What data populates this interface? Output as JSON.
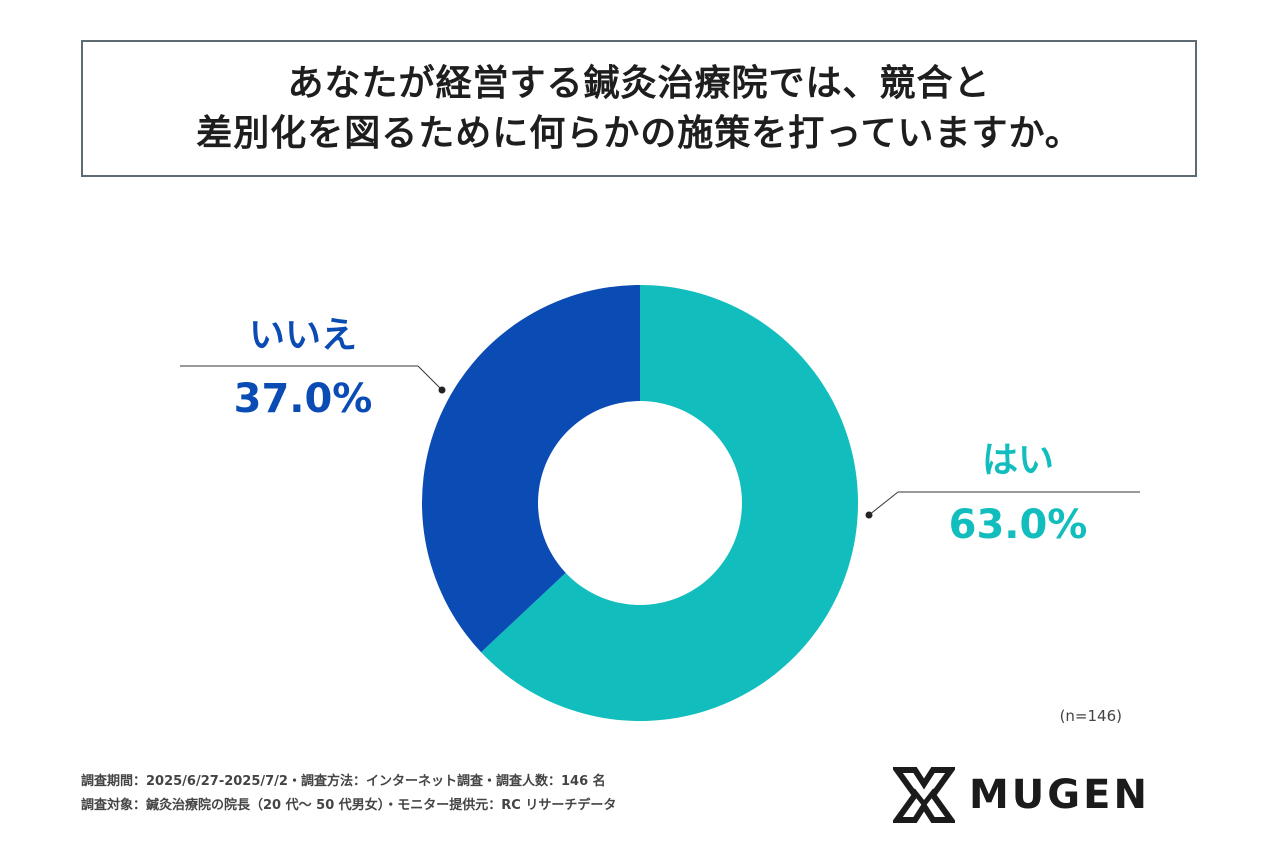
{
  "title_lines": [
    "あなたが経営する鍼灸治療院では、競合と",
    "差別化を図るために何らかの施策を打っていますか。"
  ],
  "chart_data": {
    "type": "pie",
    "donut": true,
    "slices": [
      {
        "label": "はい",
        "value": 63.0,
        "value_text": "63.0%",
        "color": "#12bdbd"
      },
      {
        "label": "いいえ",
        "value": 37.0,
        "value_text": "37.0%",
        "color": "#0a4bb4"
      }
    ],
    "sample_size": "(n=146)"
  },
  "footer": {
    "line1": "調査期間：2025/6/27-2025/7/2・調査方法：インターネット調査・調査人数：146 名",
    "line2": "調査対象：鍼灸治療院の院長（20 代～ 50 代男女）・モニター提供元：RC リサーチデータ"
  },
  "logo": {
    "text": "MUGEN",
    "icon": "mugen-x-logo-icon"
  }
}
